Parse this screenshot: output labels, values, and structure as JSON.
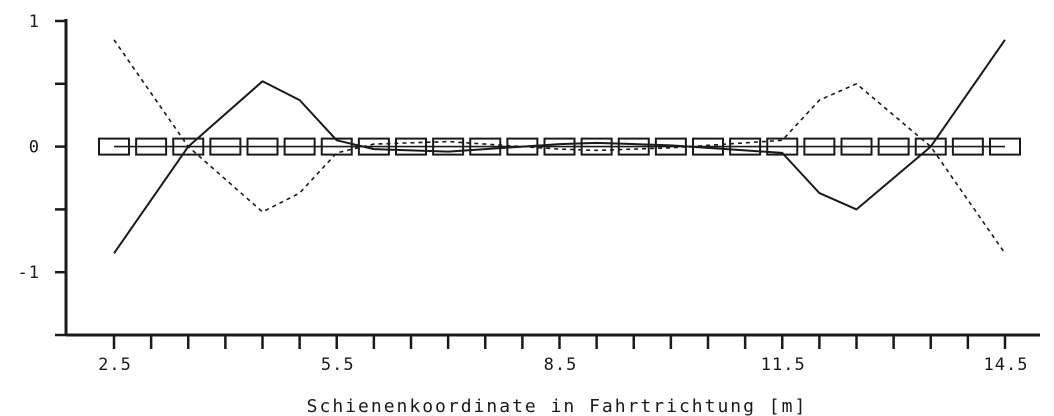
{
  "chart_data": {
    "type": "line",
    "title": "",
    "xlabel": "Schienenkoordinate in Fahrtrichtung [m]",
    "ylabel": "",
    "xlim": [
      2.5,
      14.5
    ],
    "ylim": [
      -1.5,
      1.0
    ],
    "x_ticks": [
      2.5,
      3.0,
      3.5,
      4.0,
      4.5,
      5.0,
      5.5,
      6.0,
      6.5,
      7.0,
      7.5,
      8.0,
      8.5,
      9.0,
      9.5,
      10.0,
      10.5,
      11.0,
      11.5,
      12.0,
      12.5,
      13.0,
      13.5,
      14.0,
      14.5
    ],
    "x_tick_labels": [
      {
        "x": 2.5,
        "label": "2.5"
      },
      {
        "x": 5.5,
        "label": "5.5"
      },
      {
        "x": 8.5,
        "label": "8.5"
      },
      {
        "x": 11.5,
        "label": "11.5"
      },
      {
        "x": 14.5,
        "label": "14.5"
      }
    ],
    "y_ticks": [
      -1.5,
      -1.0,
      -0.5,
      0.0,
      0.5,
      1.0
    ],
    "y_tick_labels": [
      {
        "y": 1.0,
        "label": "1"
      },
      {
        "y": 0.0,
        "label": "0"
      },
      {
        "y": -1.0,
        "label": "-1"
      }
    ],
    "grid": false,
    "legend": "none",
    "series": [
      {
        "style": "solid",
        "color": "#1a1a1a",
        "x": [
          2.5,
          3.5,
          4.5,
          5.0,
          5.5,
          6.0,
          7.0,
          7.5,
          8.5,
          9.0,
          10.0,
          11.0,
          11.5,
          12.0,
          12.5,
          13.5,
          14.5
        ],
        "y": [
          -0.85,
          0.0,
          0.52,
          0.37,
          0.05,
          -0.02,
          -0.04,
          -0.02,
          0.02,
          0.03,
          0.01,
          -0.03,
          -0.05,
          -0.37,
          -0.5,
          0.0,
          0.85
        ]
      },
      {
        "style": "dashed",
        "color": "#1a1a1a",
        "x": [
          2.5,
          3.5,
          4.5,
          5.0,
          5.5,
          6.0,
          7.0,
          7.5,
          8.5,
          9.0,
          10.0,
          11.0,
          11.5,
          12.0,
          12.5,
          13.5,
          14.5
        ],
        "y": [
          0.85,
          0.0,
          -0.52,
          -0.37,
          -0.05,
          0.02,
          0.04,
          0.02,
          -0.02,
          -0.03,
          -0.01,
          0.03,
          0.05,
          0.37,
          0.5,
          0.0,
          -0.85
        ]
      },
      {
        "style": "box-markers",
        "color": "#1a1a1a",
        "x": [
          2.5,
          3.0,
          3.5,
          4.0,
          4.5,
          5.0,
          5.5,
          6.0,
          6.5,
          7.0,
          7.5,
          8.0,
          8.5,
          9.0,
          9.5,
          10.0,
          10.5,
          11.0,
          11.5,
          12.0,
          12.5,
          13.0,
          13.5,
          14.0,
          14.5
        ],
        "y": [
          0,
          0,
          0,
          0,
          0,
          0,
          0,
          0,
          0,
          0,
          0,
          0,
          0,
          0,
          0,
          0,
          0,
          0,
          0,
          0,
          0,
          0,
          0,
          0,
          0
        ]
      }
    ]
  }
}
